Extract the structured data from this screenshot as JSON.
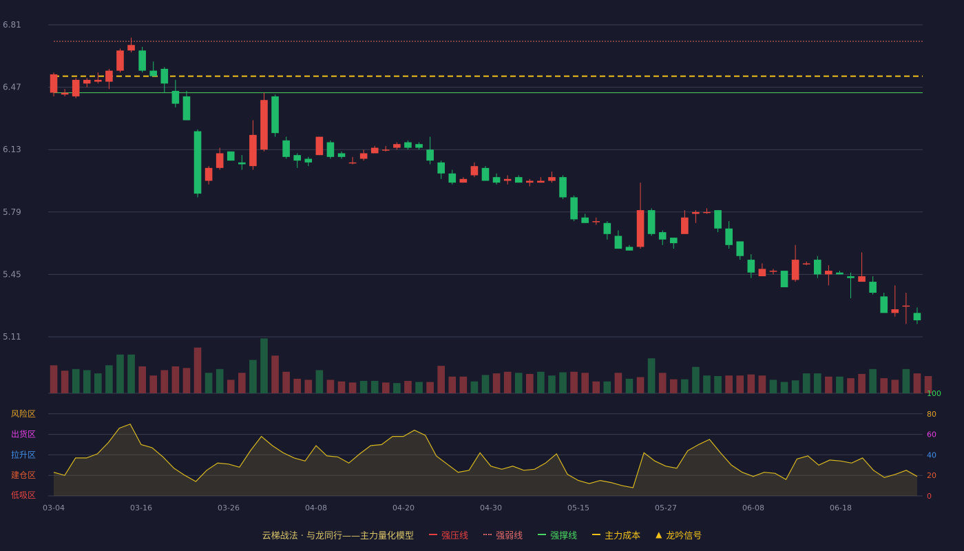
{
  "chart_data": {
    "type": "candlestick",
    "title": "云梯战法 · 与龙同行——主力量化模型",
    "x_labels": [
      "03-04",
      "03-16",
      "03-26",
      "04-08",
      "04-20",
      "04-30",
      "05-15",
      "05-27",
      "06-08",
      "06-18"
    ],
    "price_ticks": [
      "6.81",
      "6.47",
      "6.13",
      "5.79",
      "5.45",
      "5.11"
    ],
    "ylim": [
      5.11,
      6.81
    ],
    "reference_lines": [
      {
        "name": "强弱线",
        "value": 6.72,
        "color": "#e06a6a",
        "style": "dotted"
      },
      {
        "name": "主力成本",
        "value": 6.53,
        "color": "#f2c21b",
        "style": "dashed"
      },
      {
        "name": "强撑线",
        "value": 6.44,
        "color": "#4ad660",
        "style": "solid"
      }
    ],
    "candles": [
      [
        6.44,
        6.54,
        6.42,
        6.55
      ],
      [
        6.43,
        6.44,
        6.42,
        6.46
      ],
      [
        6.42,
        6.51,
        6.41,
        6.52
      ],
      [
        6.49,
        6.51,
        6.47,
        6.52
      ],
      [
        6.5,
        6.51,
        6.49,
        6.55
      ],
      [
        6.5,
        6.56,
        6.46,
        6.57
      ],
      [
        6.56,
        6.67,
        6.55,
        6.68
      ],
      [
        6.67,
        6.7,
        6.66,
        6.74
      ],
      [
        6.67,
        6.56,
        6.55,
        6.69
      ],
      [
        6.56,
        6.53,
        6.53,
        6.61
      ],
      [
        6.57,
        6.49,
        6.44,
        6.58
      ],
      [
        6.45,
        6.38,
        6.36,
        6.51
      ],
      [
        6.42,
        6.29,
        6.29,
        6.45
      ],
      [
        6.23,
        5.89,
        5.87,
        6.24
      ],
      [
        5.96,
        6.03,
        5.94,
        6.04
      ],
      [
        6.03,
        6.11,
        6.02,
        6.14
      ],
      [
        6.12,
        6.07,
        6.07,
        6.12
      ],
      [
        6.06,
        6.05,
        6.02,
        6.1
      ],
      [
        6.04,
        6.21,
        6.02,
        6.29
      ],
      [
        6.13,
        6.4,
        6.12,
        6.44
      ],
      [
        6.42,
        6.22,
        6.2,
        6.43
      ],
      [
        6.18,
        6.09,
        6.08,
        6.2
      ],
      [
        6.1,
        6.07,
        6.03,
        6.11
      ],
      [
        6.08,
        6.06,
        6.04,
        6.09
      ],
      [
        6.1,
        6.2,
        6.1,
        6.2
      ],
      [
        6.17,
        6.09,
        6.08,
        6.18
      ],
      [
        6.11,
        6.09,
        6.08,
        6.12
      ],
      [
        6.06,
        6.06,
        6.05,
        6.09
      ],
      [
        6.08,
        6.11,
        6.07,
        6.13
      ],
      [
        6.11,
        6.14,
        6.11,
        6.15
      ],
      [
        6.13,
        6.13,
        6.12,
        6.15
      ],
      [
        6.14,
        6.16,
        6.13,
        6.17
      ],
      [
        6.17,
        6.14,
        6.13,
        6.18
      ],
      [
        6.16,
        6.14,
        6.13,
        6.17
      ],
      [
        6.13,
        6.07,
        6.05,
        6.2
      ],
      [
        6.06,
        6.0,
        5.97,
        6.07
      ],
      [
        6.0,
        5.95,
        5.94,
        6.02
      ],
      [
        5.95,
        5.97,
        5.95,
        5.98
      ],
      [
        5.99,
        6.04,
        5.98,
        6.06
      ],
      [
        6.03,
        5.96,
        5.96,
        6.04
      ],
      [
        5.98,
        5.95,
        5.94,
        6.0
      ],
      [
        5.96,
        5.97,
        5.94,
        5.99
      ],
      [
        5.98,
        5.95,
        5.95,
        5.99
      ],
      [
        5.95,
        5.96,
        5.93,
        5.97
      ],
      [
        5.95,
        5.96,
        5.95,
        5.98
      ],
      [
        5.96,
        5.98,
        5.95,
        6.01
      ],
      [
        5.98,
        5.87,
        5.86,
        5.99
      ],
      [
        5.87,
        5.75,
        5.74,
        5.88
      ],
      [
        5.76,
        5.73,
        5.73,
        5.78
      ],
      [
        5.74,
        5.74,
        5.72,
        5.76
      ],
      [
        5.73,
        5.67,
        5.64,
        5.74
      ],
      [
        5.66,
        5.59,
        5.6,
        5.69
      ],
      [
        5.6,
        5.58,
        5.58,
        5.61
      ],
      [
        5.6,
        5.8,
        5.59,
        5.95
      ],
      [
        5.8,
        5.67,
        5.66,
        5.81
      ],
      [
        5.68,
        5.64,
        5.61,
        5.69
      ],
      [
        5.65,
        5.62,
        5.59,
        5.65
      ],
      [
        5.67,
        5.76,
        5.67,
        5.8
      ],
      [
        5.78,
        5.79,
        5.73,
        5.8
      ],
      [
        5.79,
        5.79,
        5.78,
        5.81
      ],
      [
        5.8,
        5.7,
        5.68,
        5.8
      ],
      [
        5.7,
        5.61,
        5.59,
        5.74
      ],
      [
        5.63,
        5.55,
        5.53,
        5.63
      ],
      [
        5.53,
        5.46,
        5.43,
        5.56
      ],
      [
        5.44,
        5.48,
        5.44,
        5.51
      ],
      [
        5.47,
        5.47,
        5.45,
        5.48
      ],
      [
        5.47,
        5.38,
        5.38,
        5.47
      ],
      [
        5.42,
        5.53,
        5.41,
        5.61
      ],
      [
        5.51,
        5.51,
        5.5,
        5.52
      ],
      [
        5.53,
        5.45,
        5.43,
        5.55
      ],
      [
        5.45,
        5.47,
        5.39,
        5.5
      ],
      [
        5.46,
        5.45,
        5.45,
        5.47
      ],
      [
        5.44,
        5.43,
        5.32,
        5.46
      ],
      [
        5.41,
        5.44,
        5.41,
        5.57
      ],
      [
        5.41,
        5.35,
        5.34,
        5.44
      ],
      [
        5.33,
        5.24,
        5.24,
        5.35
      ],
      [
        5.24,
        5.26,
        5.22,
        5.39
      ],
      [
        5.28,
        5.28,
        5.18,
        5.35
      ],
      [
        5.24,
        5.2,
        5.18,
        5.27
      ]
    ],
    "volume": [
      {
        "v": 0.52,
        "up": true
      },
      {
        "v": 0.42,
        "up": true
      },
      {
        "v": 0.45,
        "up": false
      },
      {
        "v": 0.43,
        "up": false
      },
      {
        "v": 0.37,
        "up": false
      },
      {
        "v": 0.52,
        "up": false
      },
      {
        "v": 0.72,
        "up": false
      },
      {
        "v": 0.72,
        "up": false
      },
      {
        "v": 0.5,
        "up": true
      },
      {
        "v": 0.33,
        "up": true
      },
      {
        "v": 0.43,
        "up": true
      },
      {
        "v": 0.5,
        "up": true
      },
      {
        "v": 0.47,
        "up": true
      },
      {
        "v": 0.85,
        "up": true
      },
      {
        "v": 0.38,
        "up": false
      },
      {
        "v": 0.45,
        "up": false
      },
      {
        "v": 0.25,
        "up": true
      },
      {
        "v": 0.38,
        "up": true
      },
      {
        "v": 0.62,
        "up": false
      },
      {
        "v": 1.02,
        "up": false
      },
      {
        "v": 0.7,
        "up": true
      },
      {
        "v": 0.4,
        "up": true
      },
      {
        "v": 0.27,
        "up": true
      },
      {
        "v": 0.25,
        "up": true
      },
      {
        "v": 0.43,
        "up": false
      },
      {
        "v": 0.25,
        "up": true
      },
      {
        "v": 0.22,
        "up": true
      },
      {
        "v": 0.2,
        "up": true
      },
      {
        "v": 0.23,
        "up": false
      },
      {
        "v": 0.23,
        "up": false
      },
      {
        "v": 0.2,
        "up": true
      },
      {
        "v": 0.19,
        "up": false
      },
      {
        "v": 0.23,
        "up": true
      },
      {
        "v": 0.21,
        "up": false
      },
      {
        "v": 0.21,
        "up": true
      },
      {
        "v": 0.51,
        "up": true
      },
      {
        "v": 0.31,
        "up": true
      },
      {
        "v": 0.31,
        "up": true
      },
      {
        "v": 0.22,
        "up": false
      },
      {
        "v": 0.34,
        "up": false
      },
      {
        "v": 0.37,
        "up": true
      },
      {
        "v": 0.4,
        "up": true
      },
      {
        "v": 0.38,
        "up": false
      },
      {
        "v": 0.36,
        "up": true
      },
      {
        "v": 0.4,
        "up": false
      },
      {
        "v": 0.33,
        "up": false
      },
      {
        "v": 0.39,
        "up": false
      },
      {
        "v": 0.4,
        "up": true
      },
      {
        "v": 0.38,
        "up": true
      },
      {
        "v": 0.22,
        "up": true
      },
      {
        "v": 0.22,
        "up": false
      },
      {
        "v": 0.38,
        "up": true
      },
      {
        "v": 0.27,
        "up": false
      },
      {
        "v": 0.3,
        "up": true
      },
      {
        "v": 0.65,
        "up": false
      },
      {
        "v": 0.38,
        "up": true
      },
      {
        "v": 0.26,
        "up": true
      },
      {
        "v": 0.26,
        "up": false
      },
      {
        "v": 0.49,
        "up": false
      },
      {
        "v": 0.33,
        "up": false
      },
      {
        "v": 0.32,
        "up": false
      },
      {
        "v": 0.33,
        "up": true
      },
      {
        "v": 0.33,
        "up": true
      },
      {
        "v": 0.35,
        "up": true
      },
      {
        "v": 0.33,
        "up": true
      },
      {
        "v": 0.25,
        "up": false
      },
      {
        "v": 0.21,
        "up": false
      },
      {
        "v": 0.24,
        "up": false
      },
      {
        "v": 0.37,
        "up": false
      },
      {
        "v": 0.37,
        "up": false
      },
      {
        "v": 0.31,
        "up": true
      },
      {
        "v": 0.31,
        "up": false
      },
      {
        "v": 0.28,
        "up": true
      },
      {
        "v": 0.36,
        "up": true
      },
      {
        "v": 0.45,
        "up": false
      },
      {
        "v": 0.28,
        "up": true
      },
      {
        "v": 0.25,
        "up": true
      },
      {
        "v": 0.45,
        "up": false
      },
      {
        "v": 0.37,
        "up": true
      },
      {
        "v": 0.32,
        "up": true
      }
    ],
    "indicator": {
      "ylim": [
        0,
        100
      ],
      "right_ticks": [
        {
          "label": "100",
          "color": "#3ccf5a"
        },
        {
          "label": "80",
          "color": "#e0a02a"
        },
        {
          "label": "60",
          "color": "#e040e0"
        },
        {
          "label": "40",
          "color": "#3f8ee8"
        },
        {
          "label": "20",
          "color": "#e05a30"
        },
        {
          "label": "0",
          "color": "#e04444"
        }
      ],
      "left_zones": [
        {
          "label": "风险区",
          "color": "#e0a02a"
        },
        {
          "label": "出货区",
          "color": "#e040e0"
        },
        {
          "label": "拉升区",
          "color": "#3f8ee8"
        },
        {
          "label": "建仓区",
          "color": "#e05a30"
        },
        {
          "label": "低吸区",
          "color": "#e04444"
        }
      ],
      "values": [
        23,
        20,
        37,
        37,
        41,
        52,
        66,
        70,
        50,
        47,
        38,
        27,
        20,
        14,
        25,
        32,
        31,
        28,
        44,
        58,
        49,
        42,
        37,
        34,
        49,
        39,
        38,
        32,
        41,
        49,
        50,
        58,
        58,
        64,
        59,
        39,
        31,
        23,
        25,
        42,
        29,
        26,
        29,
        25,
        26,
        32,
        41,
        21,
        15,
        12,
        15,
        13,
        10,
        8,
        42,
        34,
        29,
        27,
        44,
        50,
        55,
        42,
        30,
        23,
        19,
        23,
        22,
        16,
        36,
        39,
        30,
        35,
        34,
        32,
        37,
        25,
        18,
        21,
        25,
        19
      ]
    }
  },
  "legend": {
    "title": "云梯战法 · 与龙同行——主力量化模型",
    "items": [
      {
        "label": "强压线",
        "color": "#e84040",
        "style": "solid"
      },
      {
        "label": "强弱线",
        "color": "#e06a6a",
        "style": "dotted"
      },
      {
        "label": "强撑线",
        "color": "#4ad660",
        "style": "solid"
      },
      {
        "label": "主力成本",
        "color": "#f2c21b",
        "style": "dashed"
      },
      {
        "label": "龙吟信号",
        "color": "#f2c21b",
        "icon": "triangle-up-icon"
      }
    ]
  },
  "colors": {
    "background": "#181a2b",
    "up": "#e8483f",
    "down": "#1fba6a",
    "grid": "#3a3d52",
    "axis_text": "#8b8fa3",
    "indicator_line": "#d8b820"
  }
}
